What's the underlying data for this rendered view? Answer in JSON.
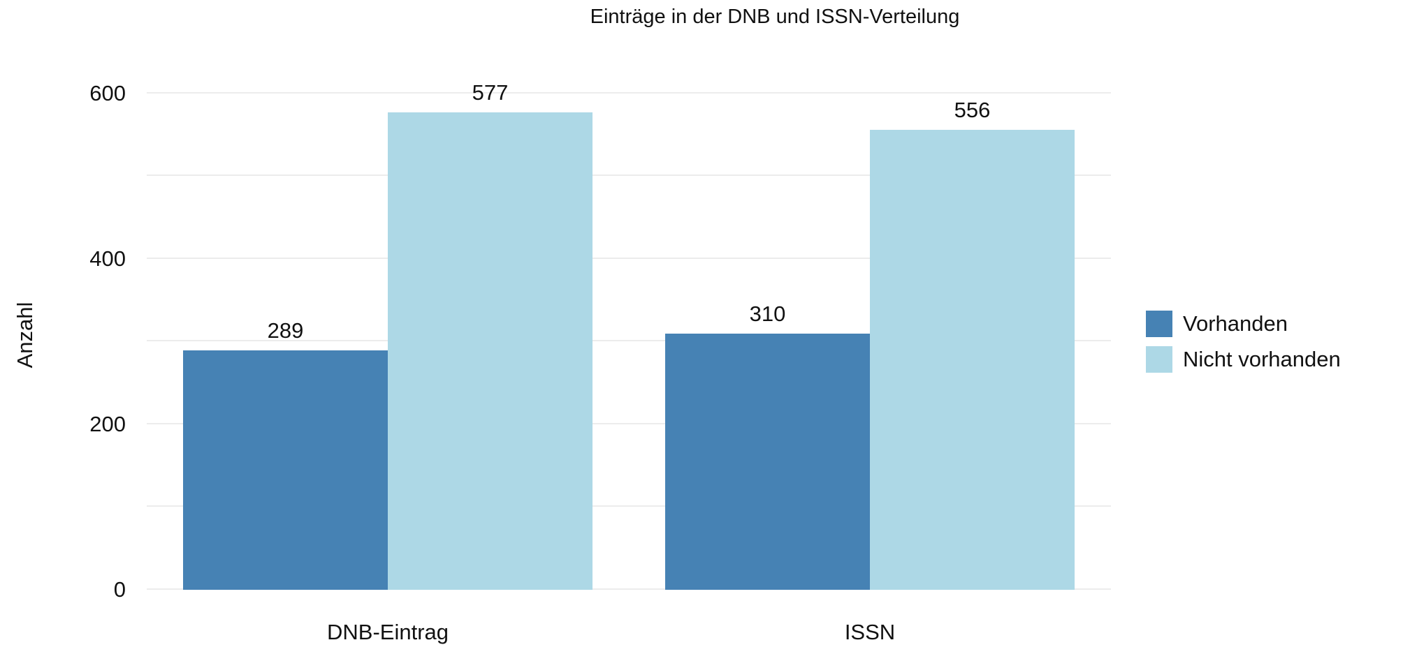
{
  "chart_data": {
    "type": "bar",
    "title": "Einträge in der DNB und ISSN-Verteilung",
    "ylabel": "Anzahl",
    "xlabel": "",
    "categories": [
      "DNB-Eintrag",
      "ISSN"
    ],
    "series": [
      {
        "name": "Vorhanden",
        "color": "#4682B4",
        "values": [
          289,
          310
        ]
      },
      {
        "name": "Nicht vorhanden",
        "color": "#ADD8E6",
        "values": [
          577,
          556
        ]
      }
    ],
    "ylim": [
      0,
      620
    ],
    "yticks": [
      0,
      200,
      400,
      600
    ],
    "gridline_step": 100,
    "grid": true,
    "legend_position": "right",
    "background": "#ffffff",
    "bar_value_labels": [
      289,
      577,
      310,
      556
    ]
  }
}
